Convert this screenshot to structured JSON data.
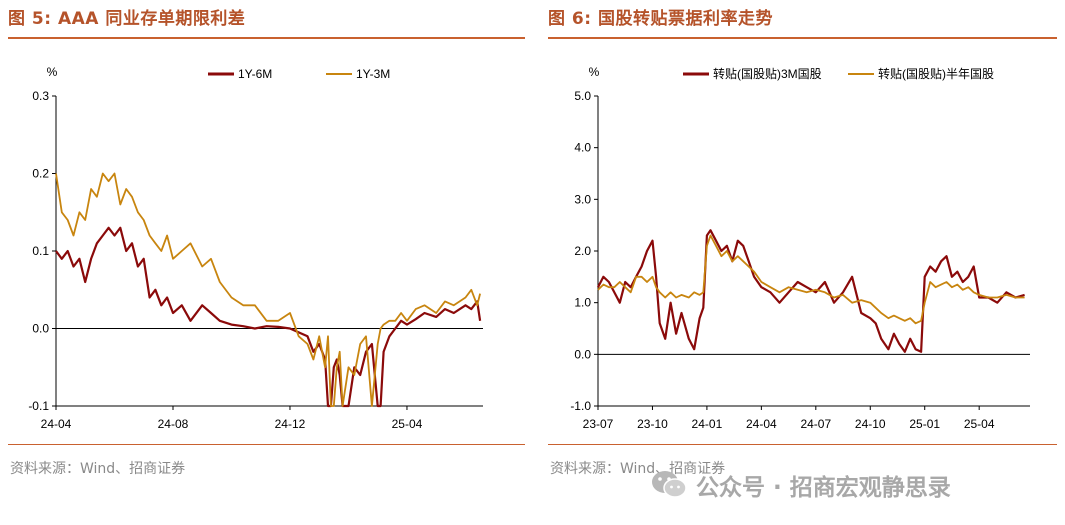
{
  "figures": [
    {
      "title": "图 5:  AAA 同业存单期限利差",
      "source": "资料来源：Wind、招商证券"
    },
    {
      "title": "图 6:  国股转贴票据利率走势",
      "source": "资料来源：Wind、招商证券"
    }
  ],
  "watermark": {
    "text": "公众号 · 招商宏观静思录",
    "icon": "wechat-icon"
  },
  "colors": {
    "title": "#b5532a",
    "rule": "#c9612f",
    "dark_red": "#8b0a0a",
    "gold": "#c8850f",
    "source": "#8a8a8a"
  },
  "chart_data": [
    {
      "type": "line",
      "title": "AAA 同业存单期限利差",
      "ylabel": "%",
      "xlabel": "",
      "ylim": [
        -0.1,
        0.3
      ],
      "yticks": [
        -0.1,
        0.0,
        0.1,
        0.2,
        0.3
      ],
      "ytick_labels": [
        "-0.1",
        "0.0",
        "0.1",
        "0.2",
        "0.3"
      ],
      "xlim": [
        0,
        14.6
      ],
      "xticks": [
        0,
        4,
        8,
        12
      ],
      "xtick_labels": [
        "24-04",
        "24-08",
        "24-12",
        "25-04"
      ],
      "legend_position": "top",
      "series": [
        {
          "name": "1Y-6M",
          "color": "#8b0a0a",
          "x": [
            0,
            0.2,
            0.4,
            0.6,
            0.8,
            1.0,
            1.2,
            1.4,
            1.6,
            1.8,
            2.0,
            2.2,
            2.4,
            2.6,
            2.8,
            3.0,
            3.2,
            3.4,
            3.6,
            3.8,
            4.0,
            4.3,
            4.6,
            5.0,
            5.3,
            5.6,
            6.0,
            6.4,
            6.8,
            7.2,
            7.6,
            8.0,
            8.3,
            8.6,
            8.8,
            9.0,
            9.2,
            9.3,
            9.4,
            9.5,
            9.6,
            9.7,
            9.8,
            10.0,
            10.2,
            10.4,
            10.6,
            10.8,
            11.0,
            11.1,
            11.2,
            11.4,
            11.6,
            11.8,
            12.0,
            12.3,
            12.6,
            13.0,
            13.3,
            13.6,
            14.0,
            14.2,
            14.4,
            14.5
          ],
          "y": [
            0.1,
            0.09,
            0.1,
            0.08,
            0.09,
            0.06,
            0.09,
            0.11,
            0.12,
            0.13,
            0.12,
            0.13,
            0.1,
            0.11,
            0.08,
            0.09,
            0.04,
            0.05,
            0.03,
            0.04,
            0.02,
            0.03,
            0.01,
            0.03,
            0.02,
            0.01,
            0.005,
            0.003,
            0.0,
            0.003,
            0.002,
            0.0,
            -0.005,
            -0.01,
            -0.03,
            -0.02,
            -0.04,
            -0.1,
            -0.1,
            -0.05,
            -0.04,
            -0.06,
            -0.1,
            -0.1,
            -0.05,
            -0.06,
            -0.03,
            -0.02,
            -0.1,
            -0.1,
            -0.03,
            -0.01,
            0.0,
            0.01,
            0.005,
            0.012,
            0.02,
            0.015,
            0.025,
            0.02,
            0.03,
            0.025,
            0.035,
            0.01
          ]
        },
        {
          "name": "1Y-3M",
          "color": "#c8850f",
          "x": [
            0,
            0.2,
            0.4,
            0.6,
            0.8,
            1.0,
            1.2,
            1.4,
            1.6,
            1.8,
            2.0,
            2.2,
            2.4,
            2.6,
            2.8,
            3.0,
            3.2,
            3.4,
            3.6,
            3.8,
            4.0,
            4.3,
            4.6,
            5.0,
            5.3,
            5.6,
            6.0,
            6.4,
            6.8,
            7.2,
            7.6,
            8.0,
            8.3,
            8.6,
            8.8,
            9.0,
            9.2,
            9.3,
            9.4,
            9.5,
            9.6,
            9.7,
            9.8,
            10.0,
            10.2,
            10.4,
            10.6,
            10.8,
            11.0,
            11.1,
            11.2,
            11.4,
            11.6,
            11.8,
            12.0,
            12.3,
            12.6,
            13.0,
            13.3,
            13.6,
            14.0,
            14.2,
            14.4,
            14.5
          ],
          "y": [
            0.2,
            0.15,
            0.14,
            0.12,
            0.15,
            0.14,
            0.18,
            0.17,
            0.2,
            0.19,
            0.2,
            0.16,
            0.18,
            0.17,
            0.15,
            0.14,
            0.12,
            0.11,
            0.1,
            0.12,
            0.09,
            0.1,
            0.11,
            0.08,
            0.09,
            0.06,
            0.04,
            0.03,
            0.03,
            0.01,
            0.01,
            0.02,
            -0.01,
            -0.02,
            -0.04,
            -0.01,
            -0.05,
            -0.01,
            -0.1,
            -0.1,
            -0.05,
            -0.03,
            -0.1,
            -0.05,
            -0.06,
            -0.02,
            -0.01,
            -0.1,
            -0.02,
            0.0,
            0.005,
            0.01,
            0.01,
            0.02,
            0.01,
            0.025,
            0.03,
            0.02,
            0.035,
            0.03,
            0.04,
            0.05,
            0.03,
            0.045
          ]
        }
      ]
    },
    {
      "type": "line",
      "title": "国股转贴票据利率走势",
      "ylabel": "%",
      "xlabel": "",
      "ylim": [
        -1.0,
        5.0
      ],
      "yticks": [
        -1.0,
        0.0,
        1.0,
        2.0,
        3.0,
        4.0,
        5.0
      ],
      "ytick_labels": [
        "-1.0",
        "0.0",
        "1.0",
        "2.0",
        "3.0",
        "4.0",
        "5.0"
      ],
      "xlim": [
        0,
        23.8
      ],
      "xticks": [
        0,
        3,
        6,
        9,
        12,
        15,
        18,
        21
      ],
      "xtick_labels": [
        "23-07",
        "23-10",
        "24-01",
        "24-04",
        "24-07",
        "24-10",
        "25-01",
        "25-04"
      ],
      "legend_position": "top",
      "series": [
        {
          "name": "转贴(国股贴)3M国股",
          "color": "#8b0a0a",
          "x": [
            0,
            0.3,
            0.6,
            0.9,
            1.2,
            1.5,
            1.8,
            2.1,
            2.4,
            2.7,
            3.0,
            3.2,
            3.4,
            3.7,
            4.0,
            4.3,
            4.6,
            5.0,
            5.3,
            5.6,
            5.8,
            6.0,
            6.2,
            6.5,
            6.8,
            7.1,
            7.4,
            7.7,
            8.0,
            8.3,
            8.6,
            9.0,
            9.5,
            10.0,
            10.5,
            11.0,
            11.5,
            12.0,
            12.5,
            13.0,
            13.5,
            14.0,
            14.5,
            15.0,
            15.3,
            15.6,
            16.0,
            16.3,
            16.6,
            16.9,
            17.2,
            17.5,
            17.8,
            18.0,
            18.3,
            18.6,
            18.9,
            19.2,
            19.5,
            19.8,
            20.1,
            20.4,
            20.7,
            21.0,
            21.5,
            22.0,
            22.5,
            23.0,
            23.5
          ],
          "y": [
            1.3,
            1.5,
            1.4,
            1.2,
            1.0,
            1.4,
            1.3,
            1.5,
            1.7,
            2.0,
            2.2,
            1.5,
            0.6,
            0.3,
            1.0,
            0.4,
            0.8,
            0.3,
            0.1,
            0.7,
            0.9,
            2.3,
            2.4,
            2.2,
            2.0,
            2.1,
            1.8,
            2.2,
            2.1,
            1.8,
            1.5,
            1.3,
            1.2,
            1.0,
            1.2,
            1.4,
            1.3,
            1.2,
            1.4,
            1.0,
            1.2,
            1.5,
            0.8,
            0.7,
            0.6,
            0.3,
            0.1,
            0.4,
            0.2,
            0.05,
            0.3,
            0.1,
            0.05,
            1.5,
            1.7,
            1.6,
            1.8,
            1.9,
            1.5,
            1.6,
            1.4,
            1.5,
            1.7,
            1.1,
            1.1,
            1.0,
            1.2,
            1.1,
            1.15
          ]
        },
        {
          "name": "转贴(国股贴)半年国股",
          "color": "#c8850f",
          "x": [
            0,
            0.3,
            0.6,
            0.9,
            1.2,
            1.5,
            1.8,
            2.1,
            2.4,
            2.7,
            3.0,
            3.2,
            3.4,
            3.7,
            4.0,
            4.3,
            4.6,
            5.0,
            5.3,
            5.6,
            5.8,
            6.0,
            6.2,
            6.5,
            6.8,
            7.1,
            7.4,
            7.7,
            8.0,
            8.3,
            8.6,
            9.0,
            9.5,
            10.0,
            10.5,
            11.0,
            11.5,
            12.0,
            12.5,
            13.0,
            13.5,
            14.0,
            14.5,
            15.0,
            15.3,
            15.6,
            16.0,
            16.3,
            16.6,
            16.9,
            17.2,
            17.5,
            17.8,
            18.0,
            18.3,
            18.6,
            18.9,
            19.2,
            19.5,
            19.8,
            20.1,
            20.4,
            20.7,
            21.0,
            21.5,
            22.0,
            22.5,
            23.0,
            23.5
          ],
          "y": [
            1.25,
            1.35,
            1.3,
            1.3,
            1.4,
            1.3,
            1.2,
            1.5,
            1.5,
            1.4,
            1.5,
            1.3,
            1.2,
            1.1,
            1.2,
            1.1,
            1.15,
            1.1,
            1.2,
            1.15,
            1.2,
            2.1,
            2.3,
            2.1,
            1.9,
            2.0,
            1.8,
            1.9,
            1.8,
            1.7,
            1.6,
            1.4,
            1.3,
            1.2,
            1.3,
            1.25,
            1.2,
            1.25,
            1.2,
            1.1,
            1.15,
            1.0,
            1.05,
            1.0,
            0.9,
            0.8,
            0.7,
            0.75,
            0.7,
            0.65,
            0.7,
            0.6,
            0.65,
            1.0,
            1.4,
            1.3,
            1.35,
            1.4,
            1.3,
            1.35,
            1.25,
            1.3,
            1.2,
            1.15,
            1.1,
            1.1,
            1.15,
            1.1,
            1.1
          ]
        }
      ]
    }
  ]
}
